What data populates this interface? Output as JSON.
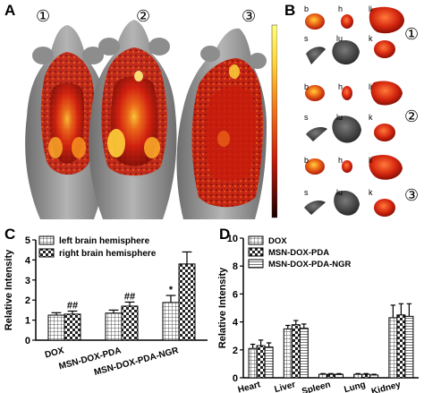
{
  "panels": {
    "A": {
      "letter": "A",
      "mouse_labels": [
        "①",
        "②",
        "③"
      ]
    },
    "B": {
      "letter": "B",
      "groups": [
        {
          "number": "①",
          "organ_labels": [
            "b",
            "h",
            "li",
            "s",
            "lu",
            "k"
          ]
        },
        {
          "number": "②",
          "organ_labels": [
            "b",
            "h",
            "li",
            "s",
            "lu",
            "k"
          ]
        },
        {
          "number": "③",
          "organ_labels": [
            "b",
            "h",
            "li",
            "s",
            "lu",
            "k"
          ]
        }
      ]
    },
    "C": {
      "letter": "C"
    },
    "D": {
      "letter": "D"
    }
  },
  "colors": {
    "colorbar_top": "#ffff80",
    "colorbar_mid": "#e8401a",
    "colorbar_bottom": "#1a0000",
    "mouse_gray": "#9a9a9a",
    "signal_red": "#d3200e",
    "signal_yellow": "#ffd23a"
  },
  "chart_data": [
    {
      "type": "bar",
      "panel": "C",
      "ylabel": "Relative Intensity",
      "xlabel": "",
      "categories": [
        "DOX",
        "MSN-DOX-PDA",
        "MSN-DOX-PDA-NGR"
      ],
      "ylim": [
        0,
        5
      ],
      "yticks": [
        "0",
        "1",
        "2",
        "3",
        "4",
        "5"
      ],
      "legend": "top-left",
      "series": [
        {
          "name": "left brain hemisphere",
          "values": [
            1.25,
            1.35,
            1.88
          ],
          "errors": [
            0.12,
            0.15,
            0.35
          ],
          "pattern": "grid"
        },
        {
          "name": "right brain hemisphere",
          "values": [
            1.3,
            1.7,
            3.8
          ],
          "errors": [
            0.15,
            0.2,
            0.6
          ],
          "pattern": "checker"
        }
      ],
      "annotations": [
        {
          "text": "##",
          "category": 0,
          "series": 1
        },
        {
          "text": "##",
          "category": 1,
          "series": 1
        },
        {
          "text": "*",
          "category": 2,
          "series": 0
        }
      ]
    },
    {
      "type": "bar",
      "panel": "D",
      "ylabel": "Relative Intensity",
      "xlabel": "",
      "categories": [
        "Heart",
        "Liver",
        "Spleen",
        "Lung",
        "Kidney"
      ],
      "ylim": [
        0,
        10
      ],
      "yticks": [
        "0",
        "2",
        "4",
        "6",
        "8",
        "10"
      ],
      "legend": "top-left",
      "series": [
        {
          "name": "DOX",
          "values": [
            2.1,
            3.5,
            0.25,
            0.25,
            4.3
          ],
          "errors": [
            0.3,
            0.25,
            0.05,
            0.05,
            0.9
          ],
          "pattern": "grid"
        },
        {
          "name": "MSN-DOX-PDA",
          "values": [
            2.3,
            3.8,
            0.25,
            0.25,
            4.5
          ],
          "errors": [
            0.4,
            0.3,
            0.05,
            0.05,
            0.8
          ],
          "pattern": "checker"
        },
        {
          "name": "MSN-DOX-PDA-NGR",
          "values": [
            2.2,
            3.55,
            0.25,
            0.2,
            4.4
          ],
          "errors": [
            0.3,
            0.3,
            0.05,
            0.05,
            0.9
          ],
          "pattern": "hlines"
        }
      ]
    }
  ]
}
